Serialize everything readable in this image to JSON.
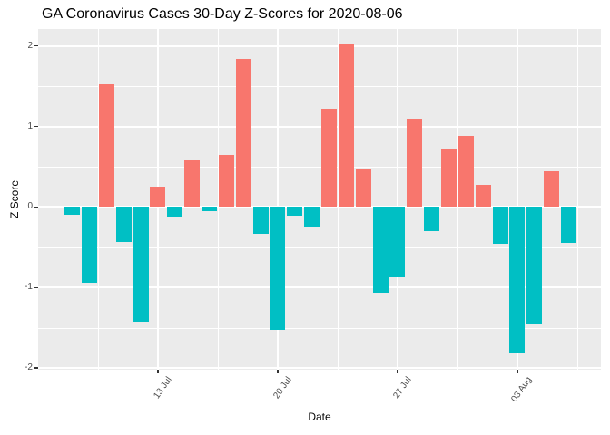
{
  "title": "GA Coronavirus Cases 30-Day Z-Scores for 2020-08-06",
  "colors": {
    "positive_bar": "#F8766D",
    "negative_bar": "#00BFC4",
    "panel_background": "#EBEBEB",
    "gridline": "#FFFFFF",
    "tick_text": "#4D4D4D",
    "tick_mark": "#333333",
    "title_text": "#000000"
  },
  "chart_data": {
    "type": "bar",
    "title": "GA Coronavirus Cases 30-Day Z-Scores for 2020-08-06",
    "xlabel": "Date",
    "ylabel": "Z Score",
    "ylim": [
      -2.02,
      2.21
    ],
    "grid": true,
    "legend_position": "none",
    "x": [
      "2020-07-08",
      "2020-07-09",
      "2020-07-10",
      "2020-07-11",
      "2020-07-12",
      "2020-07-13",
      "2020-07-14",
      "2020-07-15",
      "2020-07-16",
      "2020-07-17",
      "2020-07-18",
      "2020-07-19",
      "2020-07-20",
      "2020-07-21",
      "2020-07-22",
      "2020-07-23",
      "2020-07-24",
      "2020-07-25",
      "2020-07-26",
      "2020-07-27",
      "2020-07-28",
      "2020-07-29",
      "2020-07-30",
      "2020-07-31",
      "2020-08-01",
      "2020-08-02",
      "2020-08-03",
      "2020-08-04",
      "2020-08-05",
      "2020-08-06"
    ],
    "values": [
      -0.1,
      -0.94,
      1.52,
      -0.43,
      -1.42,
      0.25,
      -0.12,
      0.59,
      -0.05,
      0.65,
      1.84,
      -0.33,
      -1.53,
      -0.11,
      -0.24,
      1.22,
      2.02,
      0.47,
      -1.06,
      -0.87,
      1.1,
      -0.3,
      0.73,
      0.88,
      0.28,
      -0.46,
      -1.81,
      -1.46,
      0.44,
      -0.45
    ],
    "positive_color": "#F8766D",
    "negative_color": "#00BFC4",
    "x_ticks": [
      {
        "label": "13 Jul",
        "day_index": 5
      },
      {
        "label": "20 Jul",
        "day_index": 12
      },
      {
        "label": "27 Jul",
        "day_index": 19
      },
      {
        "label": "03 Aug",
        "day_index": 26
      }
    ],
    "x_minor_day_indices": [
      1.5,
      8.5,
      15.5,
      22.5,
      29.5
    ],
    "y_ticks": [
      {
        "label": "2",
        "value": 2
      },
      {
        "label": "1",
        "value": 1
      },
      {
        "label": "0",
        "value": 0
      },
      {
        "label": "-1",
        "value": -1
      },
      {
        "label": "-2",
        "value": -2
      }
    ],
    "y_minor_values": [
      1.5,
      0.5,
      -0.5,
      -1.5
    ]
  }
}
